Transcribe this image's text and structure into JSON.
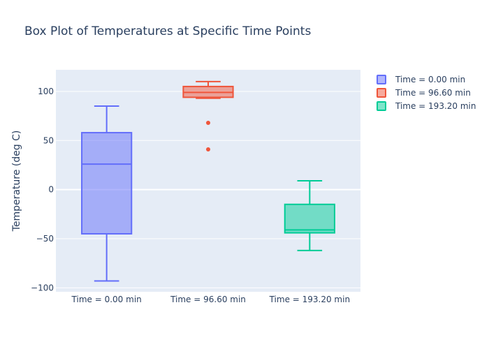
{
  "chart_data": {
    "type": "box",
    "title": "Box Plot of Temperatures at Specific Time Points",
    "xlabel": "",
    "ylabel": "Temperature (deg C)",
    "ylim": [
      -104,
      122
    ],
    "yticks": [
      {
        "value": 100,
        "label": "100"
      },
      {
        "value": 50,
        "label": "50"
      },
      {
        "value": 0,
        "label": "0"
      },
      {
        "value": -50,
        "label": "−50"
      },
      {
        "value": -100,
        "label": "−100"
      }
    ],
    "grid": true,
    "legend_position": "top-right",
    "categories": [
      "Time = 0.00 min",
      "Time = 96.60 min",
      "Time = 193.20 min"
    ],
    "series": [
      {
        "name": "Time = 0.00 min",
        "color": "#636efa",
        "min": -93,
        "q1": -45,
        "median": 26,
        "q3": 58,
        "max": 85,
        "outliers": []
      },
      {
        "name": "Time = 96.60 min",
        "color": "#ef553b",
        "min": 93,
        "q1": 94,
        "median": 99,
        "q3": 105,
        "max": 110,
        "outliers": [
          68,
          41
        ]
      },
      {
        "name": "Time = 193.20 min",
        "color": "#00cc96",
        "min": -62,
        "q1": -44,
        "median": -41,
        "q3": -15,
        "max": 9,
        "outliers": []
      }
    ]
  }
}
